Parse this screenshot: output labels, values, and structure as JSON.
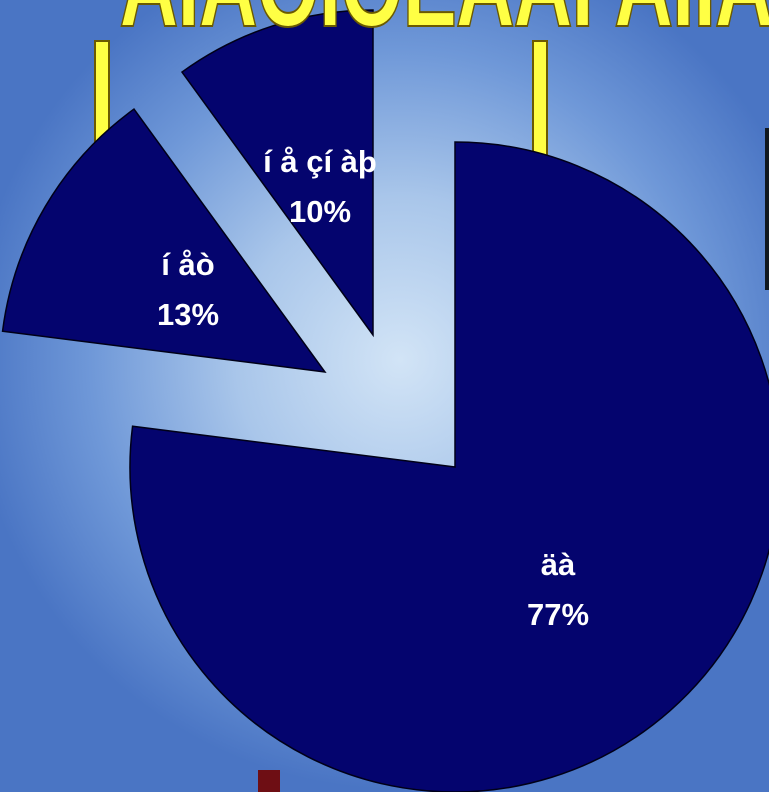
{
  "title": "ÀÍÁÔÍÖÈÄÀÍ ÀÍÌÄÈÀ",
  "colors": {
    "slice_fill": "#04046e",
    "label_text": "#ffffff",
    "title_fill": "#ffff44",
    "background_center": "#d2e4f6",
    "background_edge": "#4a75c4"
  },
  "chart_data": {
    "type": "pie",
    "exploded": true,
    "title": "",
    "slices": [
      {
        "label": "äà",
        "value": 77,
        "display": "77%"
      },
      {
        "label": "í åò",
        "value": 13,
        "display": "13%"
      },
      {
        "label": "í å çí àþ",
        "value": 10,
        "display": "10%"
      }
    ]
  }
}
